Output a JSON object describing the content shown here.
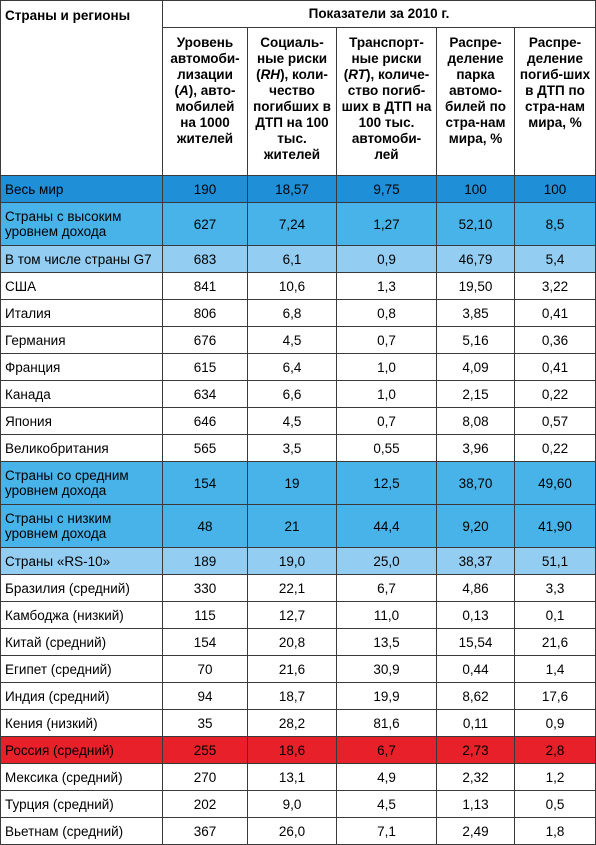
{
  "table": {
    "header_country": "Страны и регионы",
    "header_group": "Показатели за 2010 г.",
    "columns": [
      {
        "before": "Уровень автомоби-лизации (",
        "var": "A",
        "after": "), авто-мобилей на 1000 жителей"
      },
      {
        "before": "Социаль-ные риски (",
        "var": "RH",
        "after": "), коли-чество погибших в ДТП на 100 тыс. жителей"
      },
      {
        "before": "Транспорт-ные риски (",
        "var": "RT",
        "after": "), количе-ство погиб-ших в ДТП на 100 тыс. автомоби-лей"
      },
      {
        "before": "Распре-деление парка автомо-билей по стра-нам мира, %",
        "var": "",
        "after": ""
      },
      {
        "before": "Распре-деление погиб-ших в ДТП по стра-нам мира, %",
        "var": "",
        "after": ""
      }
    ],
    "rows": [
      {
        "name": "Весь мир",
        "values": [
          "190",
          "18,57",
          "9,75",
          "100",
          "100"
        ],
        "highlight": "world"
      },
      {
        "name": "Страны с высоким уровнем дохода",
        "values": [
          "627",
          "7,24",
          "1,27",
          "52,10",
          "8,5"
        ],
        "highlight": "high"
      },
      {
        "name": "В том числе страны G7",
        "values": [
          "683",
          "6,1",
          "0,9",
          "46,79",
          "5,4"
        ],
        "highlight": "g7"
      },
      {
        "name": "США",
        "values": [
          "841",
          "10,6",
          "1,3",
          "19,50",
          "3,22"
        ],
        "highlight": ""
      },
      {
        "name": "Италия",
        "values": [
          "806",
          "6,8",
          "0,8",
          "3,85",
          "0,41"
        ],
        "highlight": ""
      },
      {
        "name": "Германия",
        "values": [
          "676",
          "4,5",
          "0,7",
          "5,16",
          "0,36"
        ],
        "highlight": ""
      },
      {
        "name": "Франция",
        "values": [
          "615",
          "6,4",
          "1,0",
          "4,09",
          "0,41"
        ],
        "highlight": ""
      },
      {
        "name": "Канада",
        "values": [
          "634",
          "6,6",
          "1,0",
          "2,15",
          "0,22"
        ],
        "highlight": ""
      },
      {
        "name": "Япония",
        "values": [
          "646",
          "4,5",
          "0,7",
          "8,08",
          "0,57"
        ],
        "highlight": ""
      },
      {
        "name": "Великобритания",
        "values": [
          "565",
          "3,5",
          "0,55",
          "3,96",
          "0,22"
        ],
        "highlight": ""
      },
      {
        "name": "Страны со средним уровнем дохода",
        "values": [
          "154",
          "19",
          "12,5",
          "38,70",
          "49,60"
        ],
        "highlight": "high"
      },
      {
        "name": "Страны с низким уровнем дохода",
        "values": [
          "48",
          "21",
          "44,4",
          "9,20",
          "41,90"
        ],
        "highlight": "high"
      },
      {
        "name": "Страны «RS-10»",
        "values": [
          "189",
          "19,0",
          "25,0",
          "38,37",
          "51,1"
        ],
        "highlight": "g7"
      },
      {
        "name": "Бразилия (средний)",
        "values": [
          "330",
          "22,1",
          "6,7",
          "4,86",
          "3,3"
        ],
        "highlight": ""
      },
      {
        "name": "Камбоджа (низкий)",
        "values": [
          "115",
          "12,7",
          "11,0",
          "0,13",
          "0,1"
        ],
        "highlight": ""
      },
      {
        "name": "Китай (средний)",
        "values": [
          "154",
          "20,8",
          "13,5",
          "15,54",
          "21,6"
        ],
        "highlight": ""
      },
      {
        "name": "Египет (средний)",
        "values": [
          "70",
          "21,6",
          "30,9",
          "0,44",
          "1,4"
        ],
        "highlight": ""
      },
      {
        "name": "Индия (средний)",
        "values": [
          "94",
          "18,7",
          "19,9",
          "8,62",
          "17,6"
        ],
        "highlight": ""
      },
      {
        "name": "Кения (низкий)",
        "values": [
          "35",
          "28,2",
          "81,6",
          "0,11",
          "0,9"
        ],
        "highlight": ""
      },
      {
        "name": "Россия (средний)",
        "values": [
          "255",
          "18,6",
          "6,7",
          "2,73",
          "2,8"
        ],
        "highlight": "red"
      },
      {
        "name": "Мексика (средний)",
        "values": [
          "270",
          "13,1",
          "4,9",
          "2,32",
          "1,2"
        ],
        "highlight": ""
      },
      {
        "name": "Турция (средний)",
        "values": [
          "202",
          "9,0",
          "4,5",
          "1,13",
          "0,5"
        ],
        "highlight": ""
      },
      {
        "name": "Вьетнам (средний)",
        "values": [
          "367",
          "26,0",
          "7,1",
          "2,49",
          "1,8"
        ],
        "highlight": ""
      }
    ]
  },
  "colors": {
    "world": "#1f90d8",
    "high": "#47b3e8",
    "g7": "#93cdf2",
    "red": "#e8202a",
    "border": "#3a3a3a"
  }
}
